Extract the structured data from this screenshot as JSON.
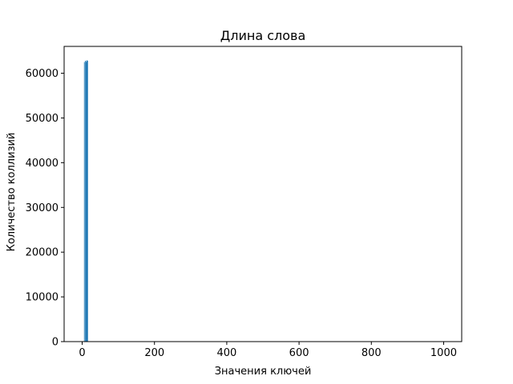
{
  "chart_data": {
    "type": "bar",
    "title": "Длина слова",
    "xlabel": "Значения ключей",
    "ylabel": "Количество коллизий",
    "xlim": [
      -50,
      1050
    ],
    "ylim": [
      0,
      66000
    ],
    "x_ticks": [
      0,
      200,
      400,
      600,
      800,
      1000
    ],
    "y_ticks": [
      0,
      10000,
      20000,
      30000,
      40000,
      50000,
      60000
    ],
    "bar_width": 2,
    "x": [
      6,
      9,
      11,
      12,
      13,
      14,
      15
    ],
    "values": [
      62500,
      62800,
      62500,
      62700,
      62900,
      62600,
      62800
    ],
    "grid": false,
    "bar_color": "#1f77b4"
  }
}
